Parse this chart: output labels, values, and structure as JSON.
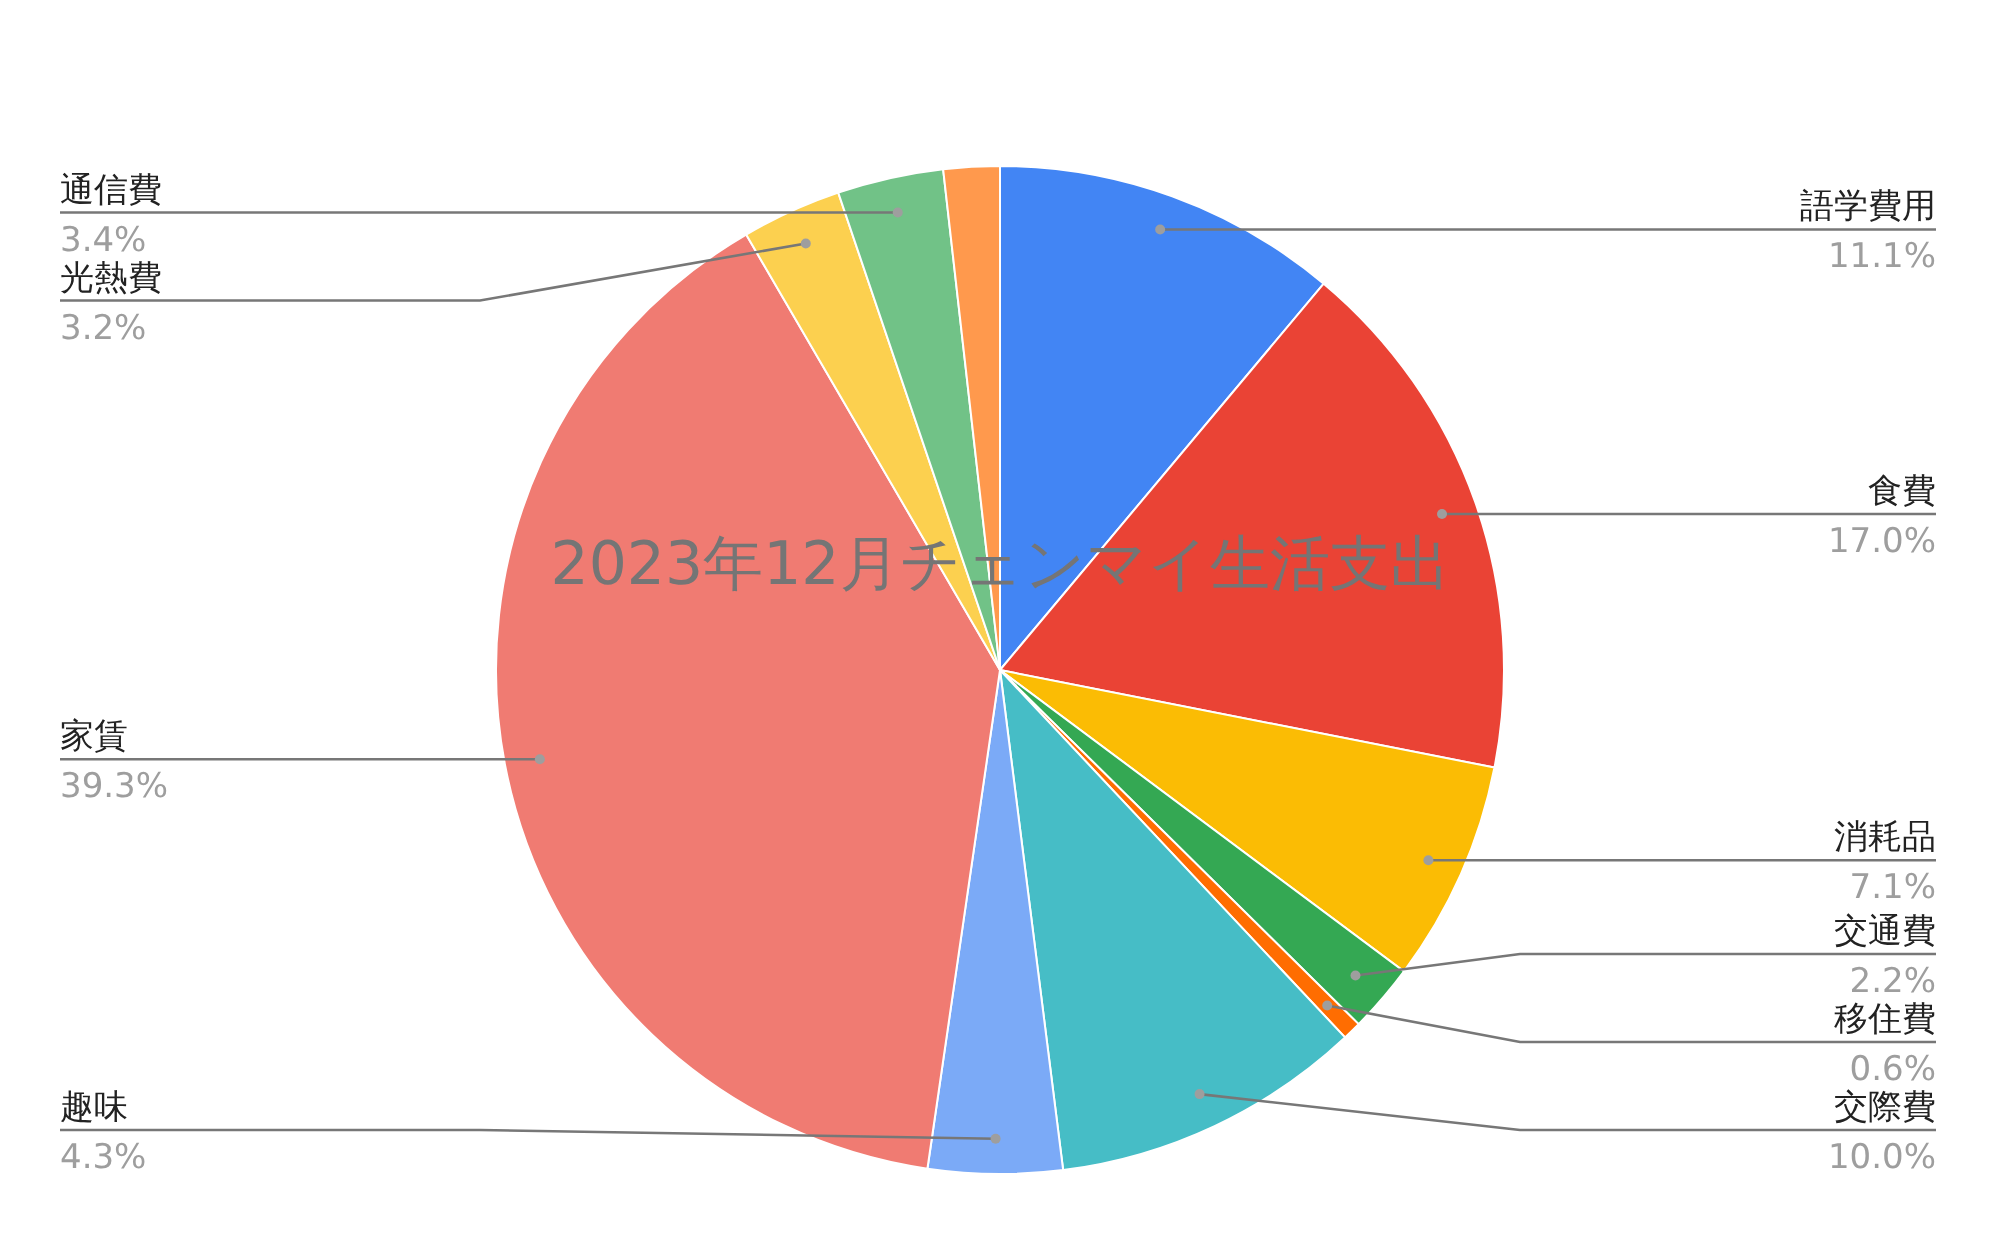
{
  "chart_data": {
    "type": "pie",
    "title": "2023年12月チェンマイ生活支出",
    "categories": [
      "語学費用",
      "食費",
      "消耗品",
      "交通費",
      "移住費",
      "交際費",
      "趣味",
      "家賃",
      "光熱費",
      "通信費",
      null
    ],
    "values": [
      11.1,
      17.0,
      7.1,
      2.2,
      0.6,
      10.0,
      4.3,
      39.3,
      3.2,
      3.4,
      1.8
    ],
    "colors": [
      "#4285f4",
      "#ea4335",
      "#fbbc04",
      "#34a853",
      "#ff6d01",
      "#46bdc6",
      "#7baaf7",
      "#f07b72",
      "#fcd04f",
      "#71c287",
      "#ff994d"
    ],
    "value_labels": [
      "11.1%",
      "17.0%",
      "7.1%",
      "2.2%",
      "0.6%",
      "10.0%",
      "4.3%",
      "39.3%",
      "3.2%",
      "3.4%",
      null
    ]
  }
}
